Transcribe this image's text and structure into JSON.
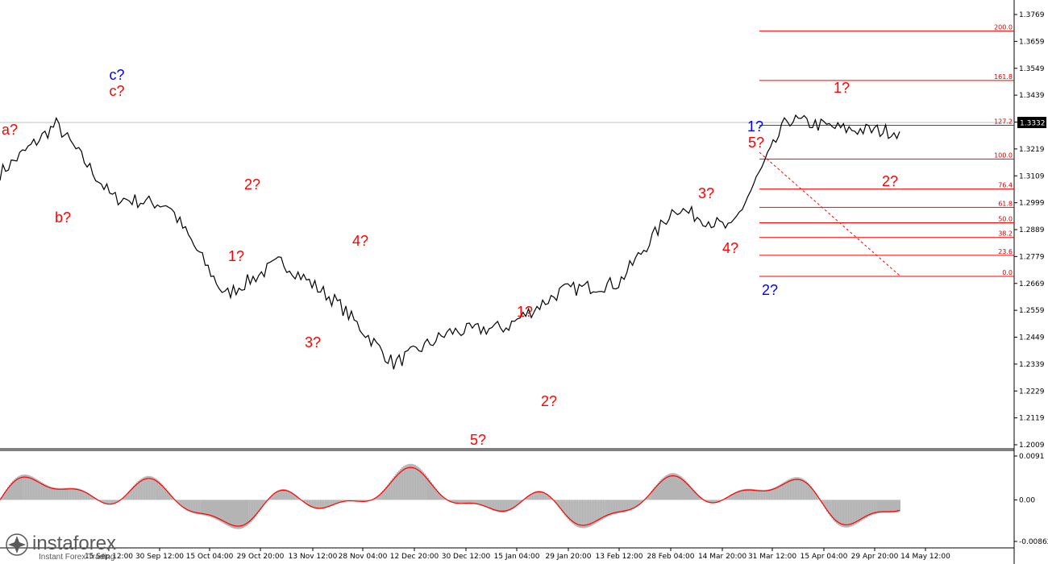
{
  "chart_data": [
    {
      "type": "line",
      "panel": "price",
      "ylim": [
        1.2009,
        1.3769
      ],
      "y_ticks": [
        "1.3769",
        "1.3659",
        "1.3549",
        "1.3439",
        "1.3329",
        "1.3219",
        "1.3109",
        "1.2999",
        "1.2889",
        "1.2779",
        "1.2669",
        "1.2559",
        "1.2449",
        "1.2339",
        "1.2229",
        "1.2119",
        "1.2009"
      ],
      "x_ticks": [
        "15 Sep 12:00",
        "30 Sep 12:00",
        "15 Oct 04:00",
        "29 Oct 20:00",
        "13 Nov 12:00",
        "28 Nov 04:00",
        "12 Dec 20:00",
        "30 Dec 12:00",
        "15 Jan 04:00",
        "29 Jan 20:00",
        "13 Feb 12:00",
        "28 Feb 04:00",
        "14 Mar 20:00",
        "31 Mar 12:00",
        "15 Apr 04:00",
        "29 Apr 20:00",
        "14 May 12:00"
      ],
      "current_price": "1.3332",
      "series": [
        {
          "x": [
            "15 Sep 12:00",
            "30 Sep 12:00",
            "15 Oct 04:00",
            "29 Oct 20:00",
            "13 Nov 12:00",
            "28 Nov 04:00",
            "12 Dec 20:00",
            "30 Dec 12:00",
            "15 Jan 04:00",
            "29 Jan 20:00",
            "13 Feb 12:00",
            "28 Feb 04:00",
            "14 Mar 20:00",
            "31 Mar 12:00",
            "15 Apr 04:00",
            "29 Apr 20:00",
            "14 May 12:00"
          ],
          "values": [
            1.312,
            1.332,
            1.302,
            1.299,
            1.262,
            1.276,
            1.259,
            1.234,
            1.247,
            1.249,
            1.264,
            1.267,
            1.298,
            1.289,
            1.334,
            1.33,
            1.329
          ]
        }
      ],
      "fibonacci": {
        "levels": [
          "200.0",
          "161.8",
          "127.2",
          "100.0",
          "76.4",
          "61.8",
          "50.0",
          "38.2",
          "23.6",
          "0.0"
        ],
        "prices": [
          1.3702,
          1.3499,
          1.3316,
          1.3178,
          1.3055,
          1.298,
          1.2917,
          1.2857,
          1.2784,
          1.2698
        ]
      },
      "wave_labels": [
        {
          "text": "a?",
          "color": "#ff0000"
        },
        {
          "text": "b?",
          "color": "#ff0000"
        },
        {
          "text": "c?",
          "color": "#0000ff"
        },
        {
          "text": "c?",
          "color": "#ff0000"
        },
        {
          "text": "1?",
          "color": "#ff0000"
        },
        {
          "text": "2?",
          "color": "#ff0000"
        },
        {
          "text": "3?",
          "color": "#ff0000"
        },
        {
          "text": "4?",
          "color": "#ff0000"
        },
        {
          "text": "5?",
          "color": "#ff0000"
        },
        {
          "text": "1?",
          "color": "#ff0000"
        },
        {
          "text": "2?",
          "color": "#ff0000"
        },
        {
          "text": "3?",
          "color": "#ff0000"
        },
        {
          "text": "4?",
          "color": "#ff0000"
        },
        {
          "text": "1?",
          "color": "#0000ff"
        },
        {
          "text": "5?",
          "color": "#ff0000"
        },
        {
          "text": "2?",
          "color": "#0000ff"
        },
        {
          "text": "1?",
          "color": "#ff0000"
        },
        {
          "text": "2?",
          "color": "#ff0000"
        }
      ]
    },
    {
      "type": "area",
      "panel": "oscillator",
      "ylim": [
        -0.00862,
        0.0091
      ],
      "y_ticks": [
        "0.0091",
        "0.00",
        "-0.00862"
      ]
    }
  ],
  "colors": {
    "background": "#ffffff",
    "price_line": "#000000",
    "fib_line": "#ff0000",
    "histogram": "#b4b4b4",
    "signal_line": "#ff0000",
    "current_price_box": "#000000"
  },
  "branding": {
    "logo_name": "instaforex",
    "tagline": "Instant Forex Trading",
    "logo_icon": "star-burst-icon"
  }
}
